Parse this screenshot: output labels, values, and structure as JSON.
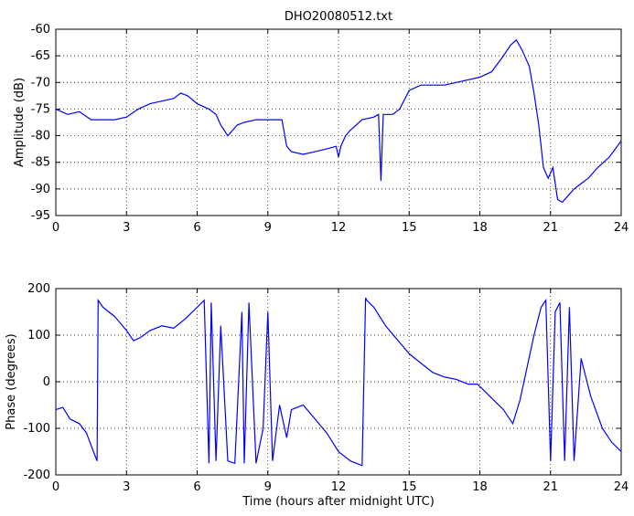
{
  "figure": {
    "title": "DHO20080512.txt",
    "line_color": "#0000ff",
    "grid": true,
    "grid_style": "dotted"
  },
  "chart_data": [
    {
      "type": "line",
      "title": "DHO20080512.txt",
      "xlabel": "",
      "ylabel": "Amplitude (dB)",
      "xlim": [
        0,
        24
      ],
      "ylim": [
        -95,
        -60
      ],
      "xticks": [
        0,
        3,
        6,
        9,
        12,
        15,
        18,
        21,
        24
      ],
      "yticks": [
        -95,
        -90,
        -85,
        -80,
        -75,
        -70,
        -65,
        -60
      ],
      "grid": true,
      "x": [
        0,
        0.5,
        1.0,
        1.5,
        2.0,
        2.5,
        3.0,
        3.5,
        4.0,
        4.5,
        5.0,
        5.3,
        5.6,
        6.0,
        6.5,
        6.8,
        7.0,
        7.3,
        7.7,
        8.0,
        8.5,
        9.0,
        9.4,
        9.6,
        9.8,
        10.0,
        10.5,
        11.0,
        11.5,
        11.9,
        12.0,
        12.1,
        12.3,
        12.5,
        13.0,
        13.5,
        13.7,
        13.8,
        13.9,
        14.0,
        14.3,
        14.6,
        15.0,
        15.5,
        16.0,
        16.5,
        17.0,
        17.5,
        18.0,
        18.5,
        19.0,
        19.3,
        19.55,
        19.8,
        20.1,
        20.3,
        20.5,
        20.7,
        20.9,
        21.1,
        21.3,
        21.5,
        21.8,
        22.0,
        22.3,
        22.6,
        23.0,
        23.5,
        24.0
      ],
      "y": [
        -75,
        -76,
        -75.5,
        -77,
        -77,
        -77,
        -76.5,
        -75,
        -74,
        -73.5,
        -73,
        -72,
        -72.5,
        -74,
        -75,
        -76,
        -78,
        -80,
        -78,
        -77.5,
        -77,
        -77,
        -77,
        -77,
        -82,
        -83,
        -83.5,
        -83,
        -82.5,
        -82,
        -84,
        -82,
        -80,
        -79,
        -77,
        -76.5,
        -76,
        -88.5,
        -76,
        -76,
        -76,
        -75,
        -71.5,
        -70.5,
        -70.5,
        -70.5,
        -70,
        -69.5,
        -69,
        -68,
        -65,
        -63,
        -62,
        -64,
        -67,
        -72,
        -78,
        -86,
        -88,
        -86,
        -92,
        -92.5,
        -91,
        -90,
        -89,
        -88,
        -86,
        -84,
        -81
      ]
    },
    {
      "type": "line",
      "title": "",
      "xlabel": "Time (hours after midnight UTC)",
      "ylabel": "Phase (degrees)",
      "xlim": [
        0,
        24
      ],
      "ylim": [
        -200,
        200
      ],
      "xticks": [
        0,
        3,
        6,
        9,
        12,
        15,
        18,
        21,
        24
      ],
      "yticks": [
        -200,
        -100,
        0,
        100,
        200
      ],
      "grid": true,
      "x": [
        0,
        0.3,
        0.6,
        1.0,
        1.3,
        1.6,
        1.75,
        1.8,
        2.0,
        2.5,
        3.0,
        3.3,
        3.6,
        4.0,
        4.5,
        5.0,
        5.5,
        6.0,
        6.3,
        6.5,
        6.6,
        6.8,
        7.0,
        7.3,
        7.6,
        7.9,
        8.0,
        8.2,
        8.5,
        8.8,
        9.0,
        9.2,
        9.5,
        9.8,
        10.0,
        10.5,
        11.0,
        11.5,
        12.0,
        12.5,
        13.0,
        13.15,
        13.2,
        13.5,
        14.0,
        14.5,
        15.0,
        15.5,
        16.0,
        16.5,
        17.0,
        17.5,
        17.9,
        18.2,
        18.6,
        19.0,
        19.4,
        19.7,
        20.0,
        20.3,
        20.6,
        20.8,
        21.0,
        21.2,
        21.4,
        21.6,
        21.8,
        22.0,
        22.3,
        22.7,
        23.2,
        23.6,
        24.0
      ],
      "y": [
        -60,
        -55,
        -80,
        -90,
        -110,
        -150,
        -170,
        175,
        160,
        140,
        110,
        88,
        95,
        110,
        120,
        115,
        135,
        160,
        175,
        -175,
        170,
        -170,
        120,
        -170,
        -175,
        150,
        -175,
        170,
        -175,
        -100,
        150,
        -170,
        -50,
        -120,
        -60,
        -50,
        -80,
        -110,
        -150,
        -170,
        -180,
        180,
        175,
        160,
        120,
        90,
        60,
        40,
        20,
        10,
        5,
        -5,
        -5,
        -20,
        -40,
        -60,
        -90,
        -40,
        30,
        100,
        160,
        175,
        -170,
        150,
        170,
        -170,
        160,
        -170,
        50,
        -30,
        -100,
        -130,
        -150
      ]
    }
  ]
}
